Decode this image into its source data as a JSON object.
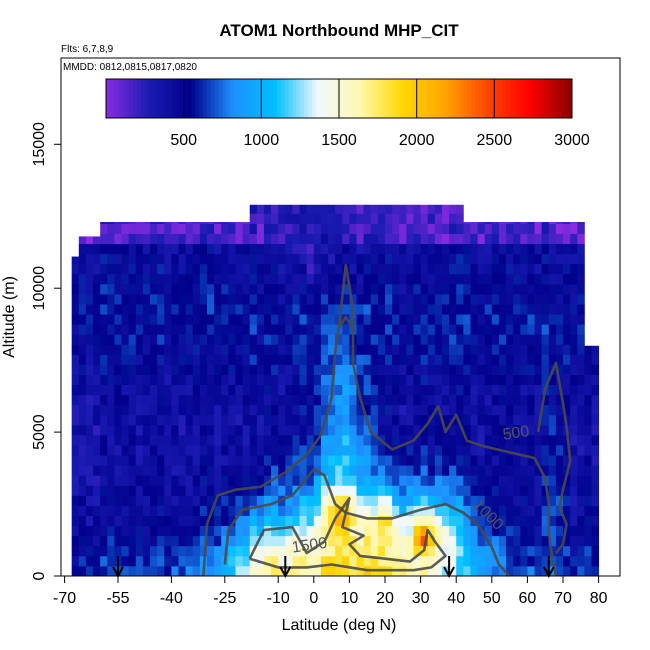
{
  "chart_data": {
    "type": "heatmap",
    "title": "ATOM1 Northbound MHP_CIT",
    "subtitle": "Flts: 6,7,8,9",
    "annotation": "MMDD: 0812,0815,0817,0820",
    "xlabel": "Latitude (deg N)",
    "ylabel": "Altitude (m)",
    "xlim": [
      -71,
      86
    ],
    "ylim": [
      0,
      18000
    ],
    "x_ticks": [
      -70,
      -55,
      -40,
      -25,
      -10,
      0,
      10,
      20,
      30,
      40,
      50,
      60,
      70,
      80
    ],
    "x_tick_labels": [
      "-70",
      "-55",
      "-40",
      "-25",
      "-10",
      "0",
      "10",
      "20",
      "30",
      "40",
      "50",
      "60",
      "70",
      "80"
    ],
    "y_ticks": [
      0,
      5000,
      10000,
      15000
    ],
    "y_tick_labels": [
      "0",
      "5000",
      "10000",
      "15000"
    ],
    "colorbar": {
      "range": [
        0,
        3000
      ],
      "ticks": [
        500,
        1000,
        1500,
        2000,
        2500,
        3000
      ],
      "tick_labels": [
        "500",
        "1000",
        "1500",
        "2000",
        "2500",
        "3000"
      ],
      "colors": [
        "#8a2be2",
        "#1c1cb4",
        "#00008b",
        "#1e90ff",
        "#00bfff",
        "#f0f8ff",
        "#fff8b0",
        "#ffd700",
        "#ffa500",
        "#ff4500",
        "#ff0000",
        "#8b0000"
      ]
    },
    "contour_levels": [
      500,
      1000,
      1500
    ],
    "contour_labels": [
      "500",
      "1000",
      "1500"
    ],
    "flight_markers_lat": [
      -55,
      -8,
      38,
      66
    ],
    "grid": false,
    "legend": "colorbar top inside plot"
  }
}
